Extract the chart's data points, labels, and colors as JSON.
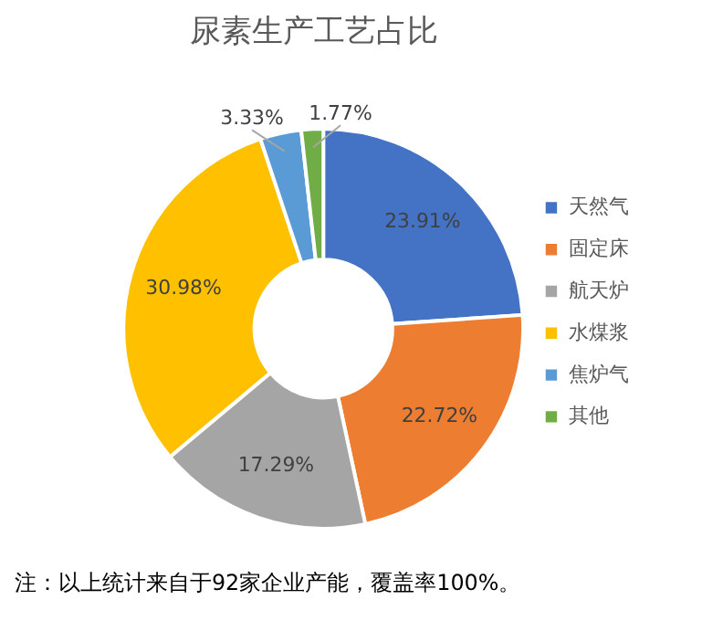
{
  "chart_data": {
    "type": "donut",
    "title": "尿素生产工艺占比",
    "categories": [
      "天然气",
      "固定床",
      "航天炉",
      "水煤浆",
      "焦炉气",
      "其他"
    ],
    "values": [
      23.91,
      22.72,
      17.29,
      30.98,
      3.33,
      1.77
    ],
    "colors": [
      "#4472c4",
      "#ed7d31",
      "#a5a5a5",
      "#ffc000",
      "#5b9bd5",
      "#70ad47"
    ],
    "value_labels": [
      "23.91%",
      "22.72%",
      "17.29%",
      "30.98%",
      "3.33%",
      "1.77%"
    ],
    "legend": "right",
    "annotations": [
      "注：以上统计来自于92家企业产能，覆盖率100%。"
    ]
  }
}
